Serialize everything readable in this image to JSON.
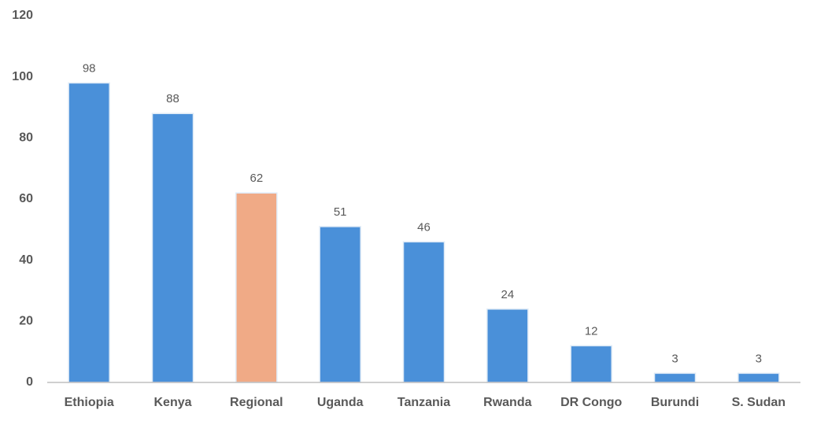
{
  "chart_data": {
    "type": "bar",
    "categories": [
      "Ethiopia",
      "Kenya",
      "Regional",
      "Uganda",
      "Tanzania",
      "Rwanda",
      "DR Congo",
      "Burundi",
      "S. Sudan"
    ],
    "values": [
      98,
      88,
      62,
      51,
      46,
      24,
      12,
      3,
      3
    ],
    "colors": [
      "#4a90d9",
      "#4a90d9",
      "#f0aa86",
      "#4a90d9",
      "#4a90d9",
      "#4a90d9",
      "#4a90d9",
      "#4a90d9",
      "#4a90d9"
    ],
    "ylim": [
      0,
      120
    ],
    "yticks": [
      0,
      20,
      40,
      60,
      80,
      100,
      120
    ],
    "grid": false
  }
}
